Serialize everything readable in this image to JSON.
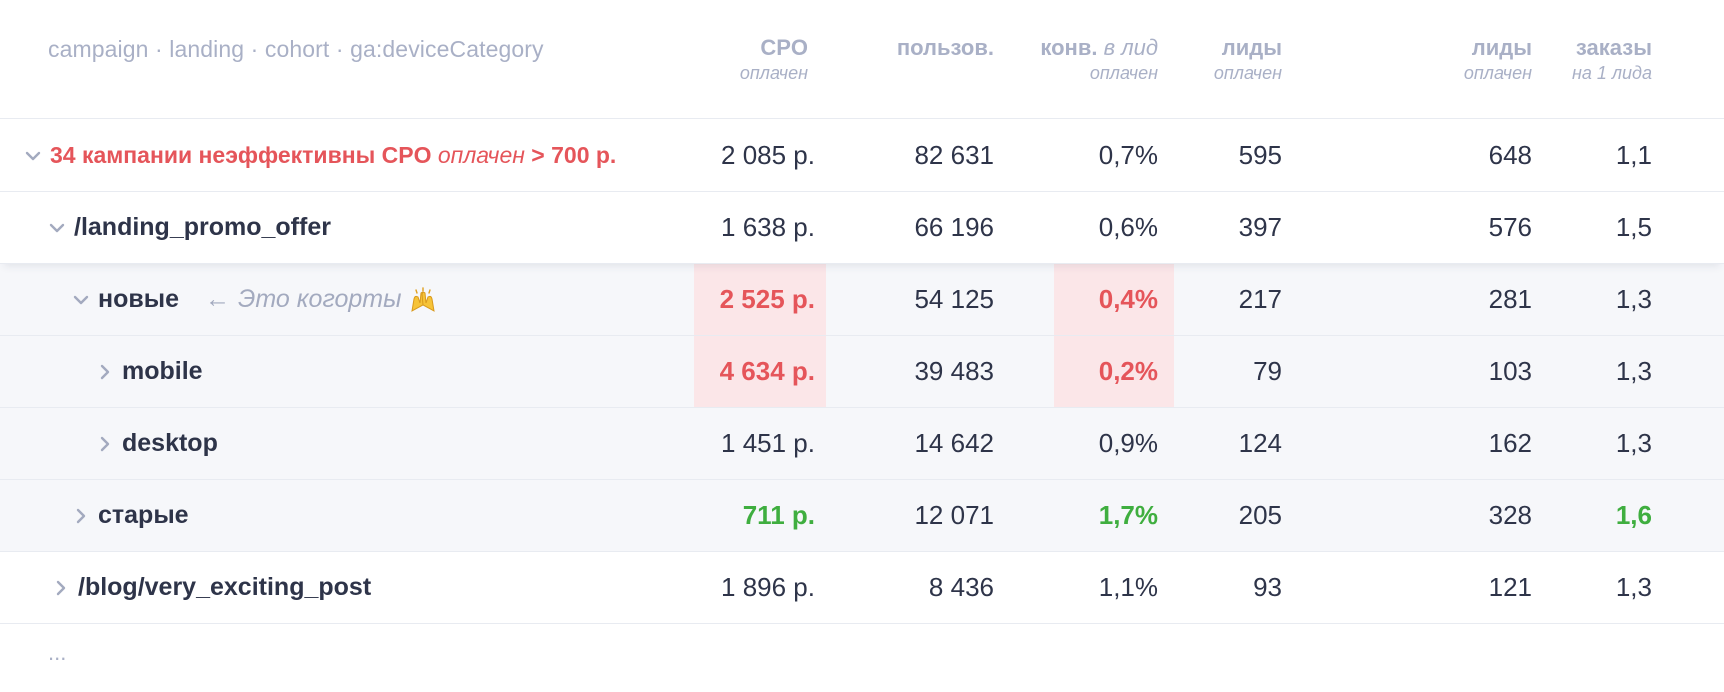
{
  "header": {
    "dimensions": "campaign · landing · cohort · ga:deviceCategory",
    "cpo": {
      "title": "CPO",
      "sub": "оплачен"
    },
    "users": {
      "title": "пользов."
    },
    "conv": {
      "title": "конв.",
      "title_italic": "в лид",
      "sub": "оплачен"
    },
    "leads": {
      "title": "лиды",
      "sub": "оплачен"
    },
    "leads2": {
      "title": "лиды",
      "sub": "оплачен"
    },
    "orders": {
      "title": "заказы",
      "sub": "на 1 лида"
    }
  },
  "rows": [
    {
      "label_pre": "34 кампании неэффективны CPO",
      "label_italic": "оплачен",
      "label_post": "> 700 р.",
      "cpo": "2 085 р.",
      "users": "82 631",
      "conv": "0,7%",
      "leads": "595",
      "leads2": "648",
      "orders": "1,1"
    },
    {
      "label": "/landing_promo_offer",
      "cpo": "1 638 р.",
      "users": "66 196",
      "conv": "0,6%",
      "leads": "397",
      "leads2": "576",
      "orders": "1,5"
    },
    {
      "label": "новые",
      "note_arrow": "←",
      "note": "Это когорты",
      "cpo": "2 525 р.",
      "users": "54 125",
      "conv": "0,4%",
      "leads": "217",
      "leads2": "281",
      "orders": "1,3"
    },
    {
      "label": "mobile",
      "cpo": "4 634 р.",
      "users": "39 483",
      "conv": "0,2%",
      "leads": "79",
      "leads2": "103",
      "orders": "1,3"
    },
    {
      "label": "desktop",
      "cpo": "1 451 р.",
      "users": "14 642",
      "conv": "0,9%",
      "leads": "124",
      "leads2": "162",
      "orders": "1,3"
    },
    {
      "label": "старые",
      "cpo": "711 р.",
      "users": "12 071",
      "conv": "1,7%",
      "leads": "205",
      "leads2": "328",
      "orders": "1,6"
    },
    {
      "label": "/blog/very_exciting_post",
      "cpo": "1 896 р.",
      "users": "8 436",
      "conv": "1,1%",
      "leads": "93",
      "leads2": "121",
      "orders": "1,3"
    }
  ],
  "footer": {
    "more": "..."
  },
  "colors": {
    "bad": "#e5555a",
    "good": "#3fae3f",
    "highlight": "#fbe6e8",
    "muted": "#a9b0c6"
  }
}
